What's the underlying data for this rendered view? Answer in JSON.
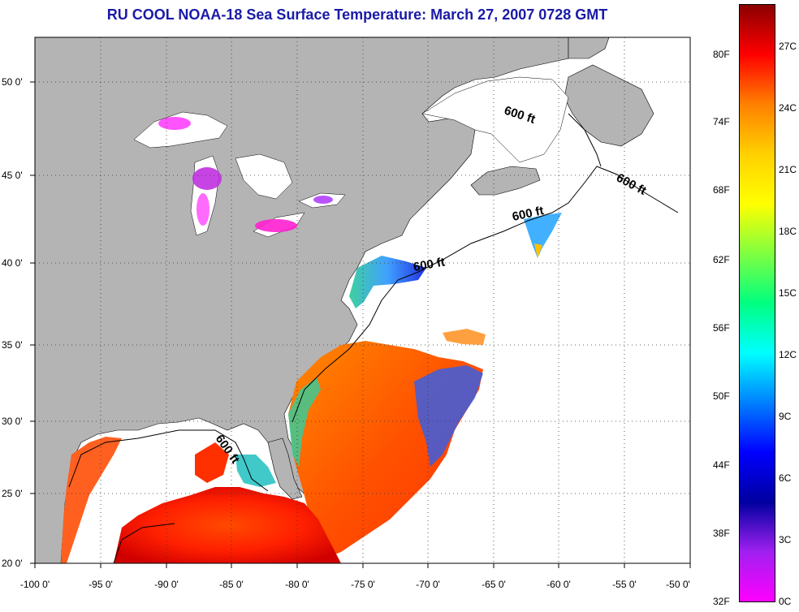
{
  "title": "RU COOL  NOAA-18  Sea Surface Temperature:  March 27, 2007 0728 GMT",
  "map": {
    "lat_labels": [
      "50 0'",
      "45 0'",
      "40 0'",
      "35 0'",
      "30 0'",
      "25 0'",
      "20 0'"
    ],
    "lon_labels": [
      "-100 0'",
      "-95 0'",
      "-90 0'",
      "-85 0'",
      "-80 0'",
      "-75 0'",
      "-70 0'",
      "-65 0'",
      "-60 0'",
      "-55 0'",
      "-50 0'"
    ],
    "isobath_label": "600 ft",
    "land_color": "#b4b4b4",
    "no_data_color": "#ffffff"
  },
  "colorbar": {
    "fahrenheit": [
      "80F",
      "74F",
      "68F",
      "62F",
      "56F",
      "50F",
      "44F",
      "38F",
      "32F"
    ],
    "celsius": [
      "27C",
      "24C",
      "21C",
      "18C",
      "15C",
      "12C",
      "9C",
      "6C",
      "3C",
      "0C"
    ],
    "colors_top_to_bottom": [
      "#8b0000",
      "#ff0000",
      "#ff8000",
      "#ffd000",
      "#ffff00",
      "#80ff40",
      "#00ff80",
      "#00ffff",
      "#0080ff",
      "#0000ff",
      "#0000a0",
      "#a020f0",
      "#ff00ff"
    ]
  }
}
